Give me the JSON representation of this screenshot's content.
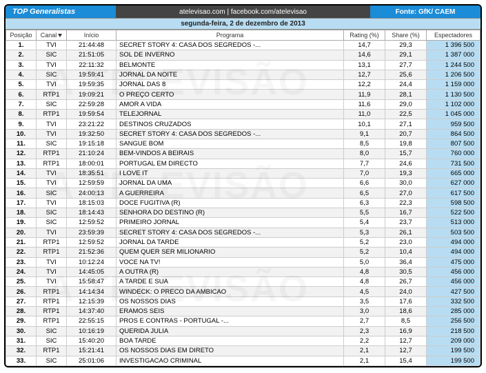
{
  "header": {
    "title": "TOP Generalistas",
    "center": "atelevisao.com | facebook.com/atelevisao",
    "source": "Fonte: GfK/ CAEM",
    "date": "segunda-feira, 2 de dezembro de 2013"
  },
  "columns": {
    "pos": "Posição",
    "canal": "Canal",
    "inicio": "Início",
    "programa": "Programa",
    "rating": "Rating (%)",
    "share": "Share (%)",
    "espect": "Espectadores"
  },
  "colors": {
    "primary": "#1a8cd8",
    "espect_bg": "#b8ddf2",
    "header_dark": "#444444"
  },
  "rows": [
    {
      "pos": "1.",
      "canal": "TVI",
      "inicio": "21:44:48",
      "programa": "SECRET STORY 4: CASA DOS SEGREDOS -...",
      "rating": "14,7",
      "share": "29,3",
      "espect": "1 396 500"
    },
    {
      "pos": "2.",
      "canal": "SIC",
      "inicio": "21:51:05",
      "programa": "SOL DE INVERNO",
      "rating": "14,6",
      "share": "29,1",
      "espect": "1 387 000"
    },
    {
      "pos": "3.",
      "canal": "TVI",
      "inicio": "22:11:32",
      "programa": "BELMONTE",
      "rating": "13,1",
      "share": "27,7",
      "espect": "1 244 500"
    },
    {
      "pos": "4.",
      "canal": "SIC",
      "inicio": "19:59:41",
      "programa": "JORNAL DA NOITE",
      "rating": "12,7",
      "share": "25,6",
      "espect": "1 206 500"
    },
    {
      "pos": "5.",
      "canal": "TVI",
      "inicio": "19:59:35",
      "programa": "JORNAL DAS 8",
      "rating": "12,2",
      "share": "24,4",
      "espect": "1 159 000"
    },
    {
      "pos": "6.",
      "canal": "RTP1",
      "inicio": "19:09:21",
      "programa": "O PREÇO CERTO",
      "rating": "11,9",
      "share": "28,1",
      "espect": "1 130 500"
    },
    {
      "pos": "7.",
      "canal": "SIC",
      "inicio": "22:59:28",
      "programa": "AMOR A VIDA",
      "rating": "11,6",
      "share": "29,0",
      "espect": "1 102 000"
    },
    {
      "pos": "8.",
      "canal": "RTP1",
      "inicio": "19:59:54",
      "programa": "TELEJORNAL",
      "rating": "11,0",
      "share": "22,5",
      "espect": "1 045 000"
    },
    {
      "pos": "9.",
      "canal": "TVI",
      "inicio": "23:21:22",
      "programa": "DESTINOS CRUZADOS",
      "rating": "10,1",
      "share": "27,1",
      "espect": "959 500"
    },
    {
      "pos": "10.",
      "canal": "TVI",
      "inicio": "19:32:50",
      "programa": "SECRET STORY 4: CASA DOS SEGREDOS -...",
      "rating": "9,1",
      "share": "20,7",
      "espect": "864 500"
    },
    {
      "pos": "11.",
      "canal": "SIC",
      "inicio": "19:15:18",
      "programa": "SANGUE BOM",
      "rating": "8,5",
      "share": "19,8",
      "espect": "807 500"
    },
    {
      "pos": "12.",
      "canal": "RTP1",
      "inicio": "21:10:24",
      "programa": "BEM-VINDOS A BEIRAIS",
      "rating": "8,0",
      "share": "15,7",
      "espect": "760 000"
    },
    {
      "pos": "13.",
      "canal": "RTP1",
      "inicio": "18:00:01",
      "programa": "PORTUGAL EM DIRECTO",
      "rating": "7,7",
      "share": "24,6",
      "espect": "731 500"
    },
    {
      "pos": "14.",
      "canal": "TVI",
      "inicio": "18:35:51",
      "programa": "I LOVE IT",
      "rating": "7,0",
      "share": "19,3",
      "espect": "665 000"
    },
    {
      "pos": "15.",
      "canal": "TVI",
      "inicio": "12:59:59",
      "programa": "JORNAL DA UMA",
      "rating": "6,6",
      "share": "30,0",
      "espect": "627 000"
    },
    {
      "pos": "16.",
      "canal": "SIC",
      "inicio": "24:00:13",
      "programa": "A GUERREIRA",
      "rating": "6,5",
      "share": "27,0",
      "espect": "617 500"
    },
    {
      "pos": "17.",
      "canal": "TVI",
      "inicio": "18:15:03",
      "programa": "DOCE FUGITIVA (R)",
      "rating": "6,3",
      "share": "22,3",
      "espect": "598 500"
    },
    {
      "pos": "18.",
      "canal": "SIC",
      "inicio": "18:14:43",
      "programa": "SENHORA DO DESTINO (R)",
      "rating": "5,5",
      "share": "16,7",
      "espect": "522 500"
    },
    {
      "pos": "19.",
      "canal": "SIC",
      "inicio": "12:59:52",
      "programa": "PRIMEIRO JORNAL",
      "rating": "5,4",
      "share": "23,7",
      "espect": "513 000"
    },
    {
      "pos": "20.",
      "canal": "TVI",
      "inicio": "23:59:39",
      "programa": "SECRET STORY 4: CASA DOS SEGREDOS -...",
      "rating": "5,3",
      "share": "26,1",
      "espect": "503 500"
    },
    {
      "pos": "21.",
      "canal": "RTP1",
      "inicio": "12:59:52",
      "programa": "JORNAL DA TARDE",
      "rating": "5,2",
      "share": "23,0",
      "espect": "494 000"
    },
    {
      "pos": "22.",
      "canal": "RTP1",
      "inicio": "21:52:36",
      "programa": "QUEM QUER SER MILIONARIO",
      "rating": "5,2",
      "share": "10,4",
      "espect": "494 000"
    },
    {
      "pos": "23.",
      "canal": "TVI",
      "inicio": "10:12:24",
      "programa": "VOCE NA TV!",
      "rating": "5,0",
      "share": "36,4",
      "espect": "475 000"
    },
    {
      "pos": "24.",
      "canal": "TVI",
      "inicio": "14:45:05",
      "programa": "A OUTRA (R)",
      "rating": "4,8",
      "share": "30,5",
      "espect": "456 000"
    },
    {
      "pos": "25.",
      "canal": "TVI",
      "inicio": "15:58:47",
      "programa": "A TARDE E SUA",
      "rating": "4,8",
      "share": "26,7",
      "espect": "456 000"
    },
    {
      "pos": "26.",
      "canal": "RTP1",
      "inicio": "14:14:34",
      "programa": "WINDECK: O PRECO DA AMBICAO",
      "rating": "4,5",
      "share": "24,0",
      "espect": "427 500"
    },
    {
      "pos": "27.",
      "canal": "RTP1",
      "inicio": "12:15:39",
      "programa": "OS NOSSOS DIAS",
      "rating": "3,5",
      "share": "17,6",
      "espect": "332 500"
    },
    {
      "pos": "28.",
      "canal": "RTP1",
      "inicio": "14:37:40",
      "programa": "ERAMOS SEIS",
      "rating": "3,0",
      "share": "18,6",
      "espect": "285 000"
    },
    {
      "pos": "29.",
      "canal": "RTP1",
      "inicio": "22:55:15",
      "programa": "PROS E CONTRAS - PORTUGAL -...",
      "rating": "2,7",
      "share": "8,5",
      "espect": "256 500"
    },
    {
      "pos": "30.",
      "canal": "SIC",
      "inicio": "10:16:19",
      "programa": "QUERIDA JULIA",
      "rating": "2,3",
      "share": "16,9",
      "espect": "218 500"
    },
    {
      "pos": "31.",
      "canal": "SIC",
      "inicio": "15:40:20",
      "programa": "BOA TARDE",
      "rating": "2,2",
      "share": "12,7",
      "espect": "209 000"
    },
    {
      "pos": "32.",
      "canal": "RTP1",
      "inicio": "15:21:41",
      "programa": "OS NOSSOS DIAS EM DIRETO",
      "rating": "2,1",
      "share": "12,7",
      "espect": "199 500"
    },
    {
      "pos": "33.",
      "canal": "SIC",
      "inicio": "25:01:06",
      "programa": "INVESTIGACAO CRIMINAL",
      "rating": "2,1",
      "share": "15,4",
      "espect": "199 500"
    }
  ]
}
